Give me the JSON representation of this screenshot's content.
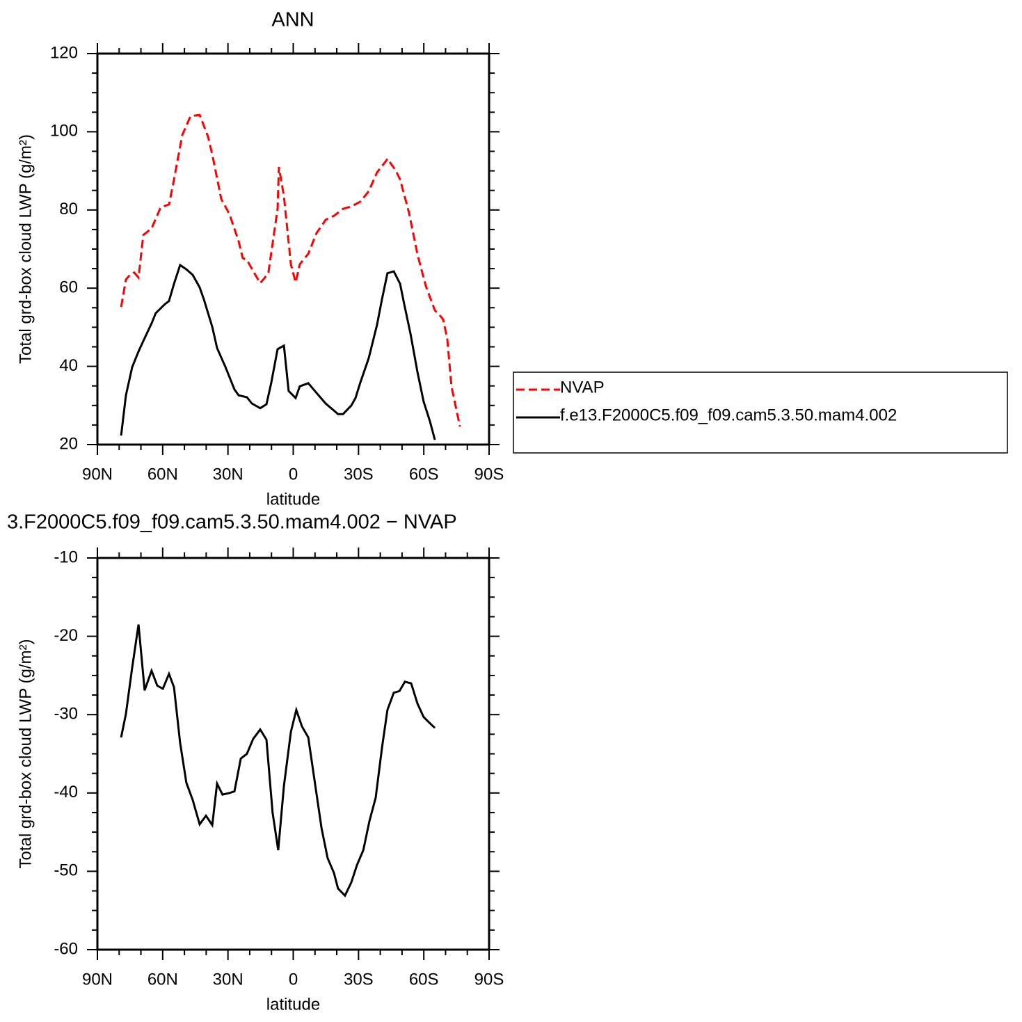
{
  "chart_data": [
    {
      "type": "line",
      "title": "ANN",
      "xlabel": "latitude",
      "ylabel": "Total grd-box cloud LWP (g/m²)",
      "xlim": [
        90,
        -90
      ],
      "xticks": [
        {
          "value": 90,
          "label": "90N"
        },
        {
          "value": 60,
          "label": "60N"
        },
        {
          "value": 30,
          "label": "30N"
        },
        0,
        {
          "value": -30,
          "label": "30S"
        },
        {
          "value": -60,
          "label": "60S"
        },
        {
          "value": -90,
          "label": "90S"
        }
      ],
      "ylim": [
        20,
        120
      ],
      "yticks": [
        20,
        40,
        60,
        80,
        100,
        120
      ],
      "legend": "outside-right",
      "series": [
        {
          "name": "NVAP",
          "color": "#ff0000",
          "linestyle": "dashed",
          "x": [
            79.1,
            76.9,
            75.0,
            73.1,
            71.1,
            68.9,
            65.1,
            60.9,
            57.1,
            54.8,
            51.0,
            47.2,
            43.0,
            39.2,
            37.2,
            33.1,
            29.3,
            25.1,
            23.2,
            21.3,
            17.1,
            15.2,
            13.3,
            11.4,
            7.2,
            6.6,
            4.3,
            1.1,
            -1.1,
            -3.0,
            -6.9,
            -10.7,
            -14.9,
            -18.7,
            -22.9,
            -26.7,
            -30.8,
            -34.7,
            -38.5,
            -42.7,
            -43.3,
            -47.1,
            -49.1,
            -53.2,
            -57.1,
            -60.9,
            -65.1,
            -67.0,
            -68.9,
            -70.8,
            -72.7,
            -76.6
          ],
          "values": [
            55.2,
            62.2,
            63.4,
            64.0,
            62.7,
            73.6,
            75.3,
            80.7,
            81.4,
            87.8,
            99.2,
            104.0,
            104.3,
            98.8,
            94.2,
            82.8,
            78.9,
            72.0,
            67.7,
            67.2,
            63.1,
            61.3,
            62.5,
            64.0,
            80.3,
            91.0,
            83.5,
            66.1,
            61.5,
            66.1,
            68.8,
            74.1,
            77.5,
            78.5,
            80.3,
            80.9,
            82.1,
            84.8,
            89.6,
            92.6,
            93.1,
            90.1,
            87.8,
            79.3,
            68.6,
            60.6,
            54.3,
            53.3,
            52.0,
            47.0,
            34.9,
            24.6
          ]
        },
        {
          "name": "f.e13.F2000C5.f09_f09.cam5.3.50.mam4.002",
          "color": "#000000",
          "linestyle": "solid",
          "x": [
            79.1,
            76.9,
            74.0,
            71.1,
            68.9,
            65.1,
            63.2,
            59.0,
            57.1,
            54.8,
            52.0,
            49.1,
            46.2,
            43.0,
            41.1,
            37.2,
            35.0,
            31.2,
            27.0,
            25.1,
            21.3,
            19.0,
            15.2,
            12.3,
            10.1,
            7.2,
            4.3,
            2.1,
            -1.1,
            -3.0,
            -6.9,
            -10.7,
            -14.9,
            -18.7,
            -20.6,
            -22.9,
            -26.7,
            -28.6,
            -30.8,
            -34.7,
            -38.5,
            -40.8,
            -43.3,
            -46.2,
            -49.1,
            -51.0,
            -53.9,
            -57.1,
            -59.9,
            -62.8,
            -65.1
          ],
          "values": [
            22.3,
            32.6,
            39.8,
            43.8,
            46.5,
            51.0,
            53.6,
            55.9,
            56.7,
            61.1,
            65.9,
            64.8,
            63.4,
            60.2,
            57.2,
            50.1,
            44.7,
            39.9,
            34.1,
            32.6,
            32.1,
            30.5,
            29.3,
            30.3,
            35.8,
            44.4,
            45.3,
            33.7,
            31.9,
            34.9,
            35.7,
            33.2,
            30.5,
            28.7,
            27.8,
            27.8,
            30.0,
            31.9,
            35.8,
            42.1,
            50.6,
            57.2,
            63.8,
            64.3,
            61.1,
            55.9,
            48.3,
            38.5,
            31.0,
            26.0,
            21.2
          ]
        }
      ]
    },
    {
      "type": "line",
      "title": "3.F2000C5.f09_f09.cam5.3.50.mam4.002 − NVAP",
      "xlabel": "latitude",
      "ylabel": "Total grd-box cloud LWP (g/m²)",
      "xlim": [
        90,
        -90
      ],
      "xticks": [
        {
          "value": 90,
          "label": "90N"
        },
        {
          "value": 60,
          "label": "60N"
        },
        {
          "value": 30,
          "label": "30N"
        },
        0,
        {
          "value": -30,
          "label": "30S"
        },
        {
          "value": -60,
          "label": "60S"
        },
        {
          "value": -90,
          "label": "90S"
        }
      ],
      "ylim": [
        -60,
        -10
      ],
      "yticks": [
        -60,
        -50,
        -40,
        -30,
        -20,
        -10
      ],
      "series": [
        {
          "color": "#000000",
          "linestyle": "solid",
          "x": [
            79.1,
            76.9,
            74.0,
            71.1,
            68.3,
            65.1,
            62.5,
            59.9,
            57.1,
            54.8,
            52.0,
            49.1,
            46.2,
            43.0,
            40.1,
            37.2,
            35.0,
            32.5,
            29.3,
            27.0,
            24.1,
            21.3,
            18.4,
            15.2,
            12.3,
            9.5,
            6.9,
            4.3,
            1.1,
            -1.4,
            -4.0,
            -6.9,
            -9.7,
            -13.0,
            -15.8,
            -18.7,
            -20.6,
            -23.8,
            -26.7,
            -29.3,
            -32.2,
            -35.0,
            -37.9,
            -40.8,
            -43.3,
            -46.2,
            -48.8,
            -51.3,
            -54.2,
            -57.1,
            -59.9,
            -62.8,
            -65.1
          ],
          "values": [
            -32.9,
            -29.9,
            -24.0,
            -18.5,
            -26.9,
            -24.4,
            -26.3,
            -26.7,
            -24.8,
            -26.5,
            -33.6,
            -38.7,
            -40.9,
            -44.0,
            -42.9,
            -44.1,
            -38.8,
            -40.2,
            -40.0,
            -39.8,
            -35.6,
            -35.0,
            -33.1,
            -31.9,
            -33.2,
            -42.5,
            -47.3,
            -39.1,
            -32.2,
            -29.4,
            -31.5,
            -32.9,
            -38.2,
            -44.5,
            -48.3,
            -50.2,
            -52.2,
            -53.1,
            -51.4,
            -49.2,
            -47.3,
            -43.6,
            -40.6,
            -34.2,
            -29.4,
            -27.2,
            -27.0,
            -25.8,
            -26.0,
            -28.6,
            -30.3,
            -31.1,
            -31.7
          ]
        }
      ]
    }
  ]
}
